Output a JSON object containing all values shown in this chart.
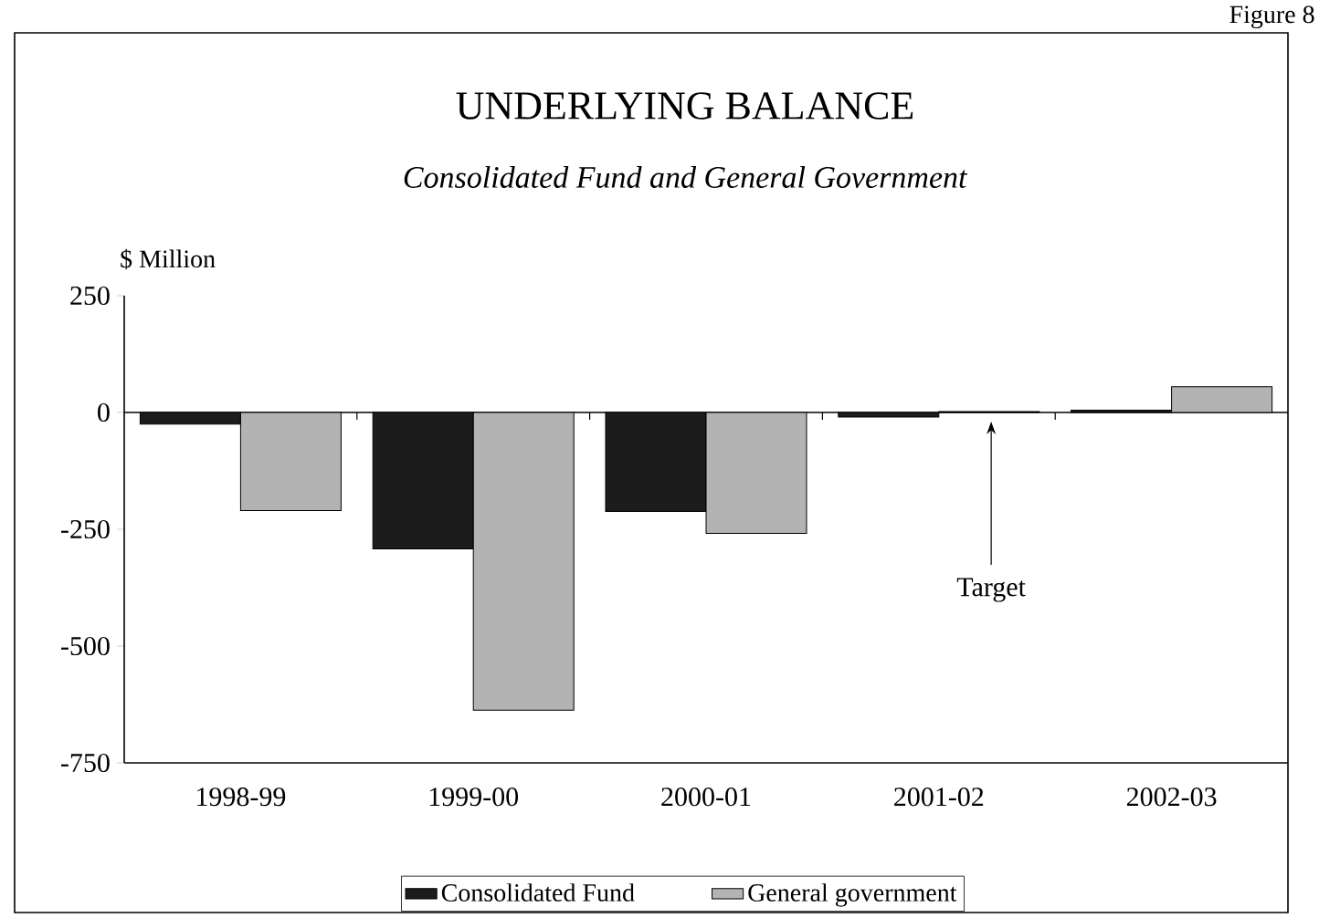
{
  "chart_data": {
    "type": "bar",
    "title": "UNDERLYING BALANCE",
    "subtitle": "*Consolidated Fund and General Government*",
    "ylabel": "$ Million",
    "categories": [
      "1998-99",
      "1999-00",
      "2000-01",
      "2001-02",
      "2002-03"
    ],
    "series": [
      {
        "name": "Consolidated Fund",
        "color": "#1c1c1c",
        "values": [
          -25,
          -292,
          -212,
          -10,
          5
        ]
      },
      {
        "name": "General government",
        "color": "#b3b3b3",
        "values": [
          -210,
          -637,
          -259,
          2,
          55
        ]
      }
    ],
    "ylim": [
      -750,
      250
    ],
    "yticks": [
      -750,
      -500,
      -250,
      0,
      250
    ],
    "grid": false,
    "legend": "bottom",
    "ref_lines": [
      {
        "axis": "y",
        "value": 0
      }
    ],
    "annotations": [
      "Figure 8",
      "Target"
    ]
  }
}
